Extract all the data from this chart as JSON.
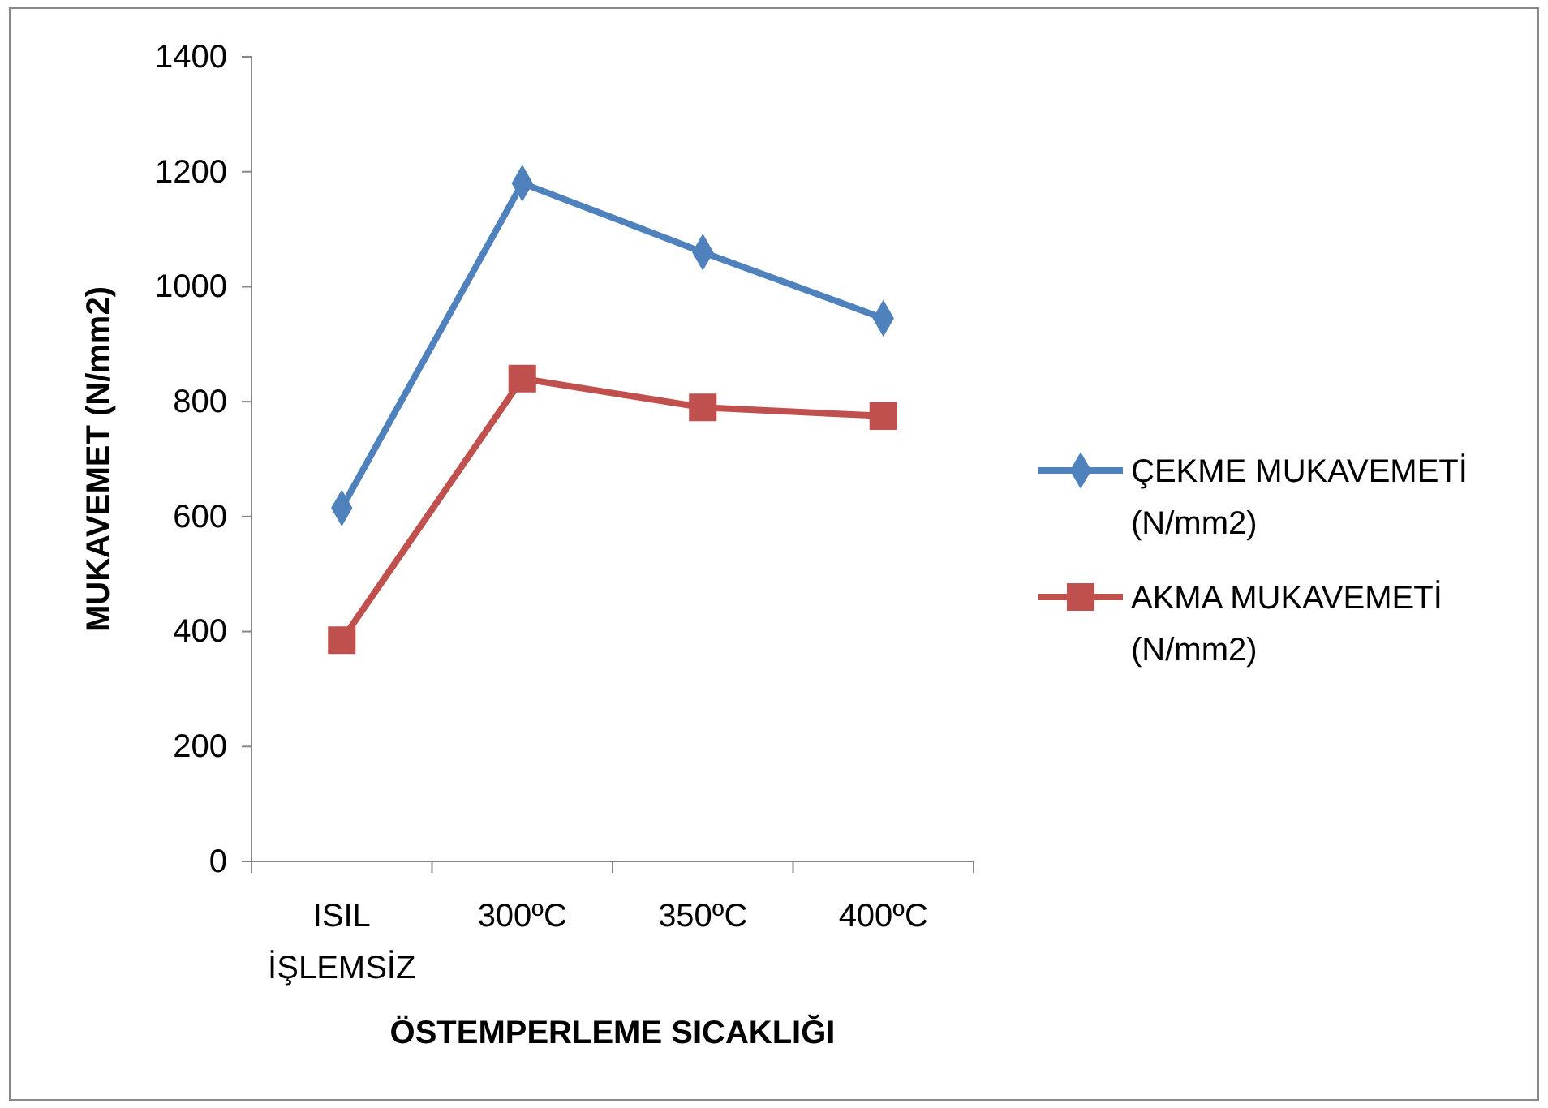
{
  "chart_data": {
    "type": "line",
    "xlabel": "ÖSTEMPERLEME SICAKLIĞI",
    "ylabel": "MUKAVEMET (N/mm2)",
    "categories": [
      "ISIL İŞLEMSİZ",
      "300ºC",
      "350ºC",
      "400ºC"
    ],
    "series": [
      {
        "name": "ÇEKME MUKAVEMETİ (N/mm2)",
        "color": "#4f81bd",
        "marker": "diamond",
        "values": [
          615,
          1180,
          1060,
          945
        ]
      },
      {
        "name": "AKMA MUKAVEMETİ (N/mm2)",
        "color": "#c0504d",
        "marker": "square",
        "values": [
          385,
          840,
          790,
          775
        ]
      }
    ],
    "ylim": [
      0,
      1400
    ],
    "yticks": [
      0,
      200,
      400,
      600,
      800,
      1000,
      1200,
      1400
    ],
    "grid": false,
    "legend": "right",
    "line_style": "solid"
  }
}
